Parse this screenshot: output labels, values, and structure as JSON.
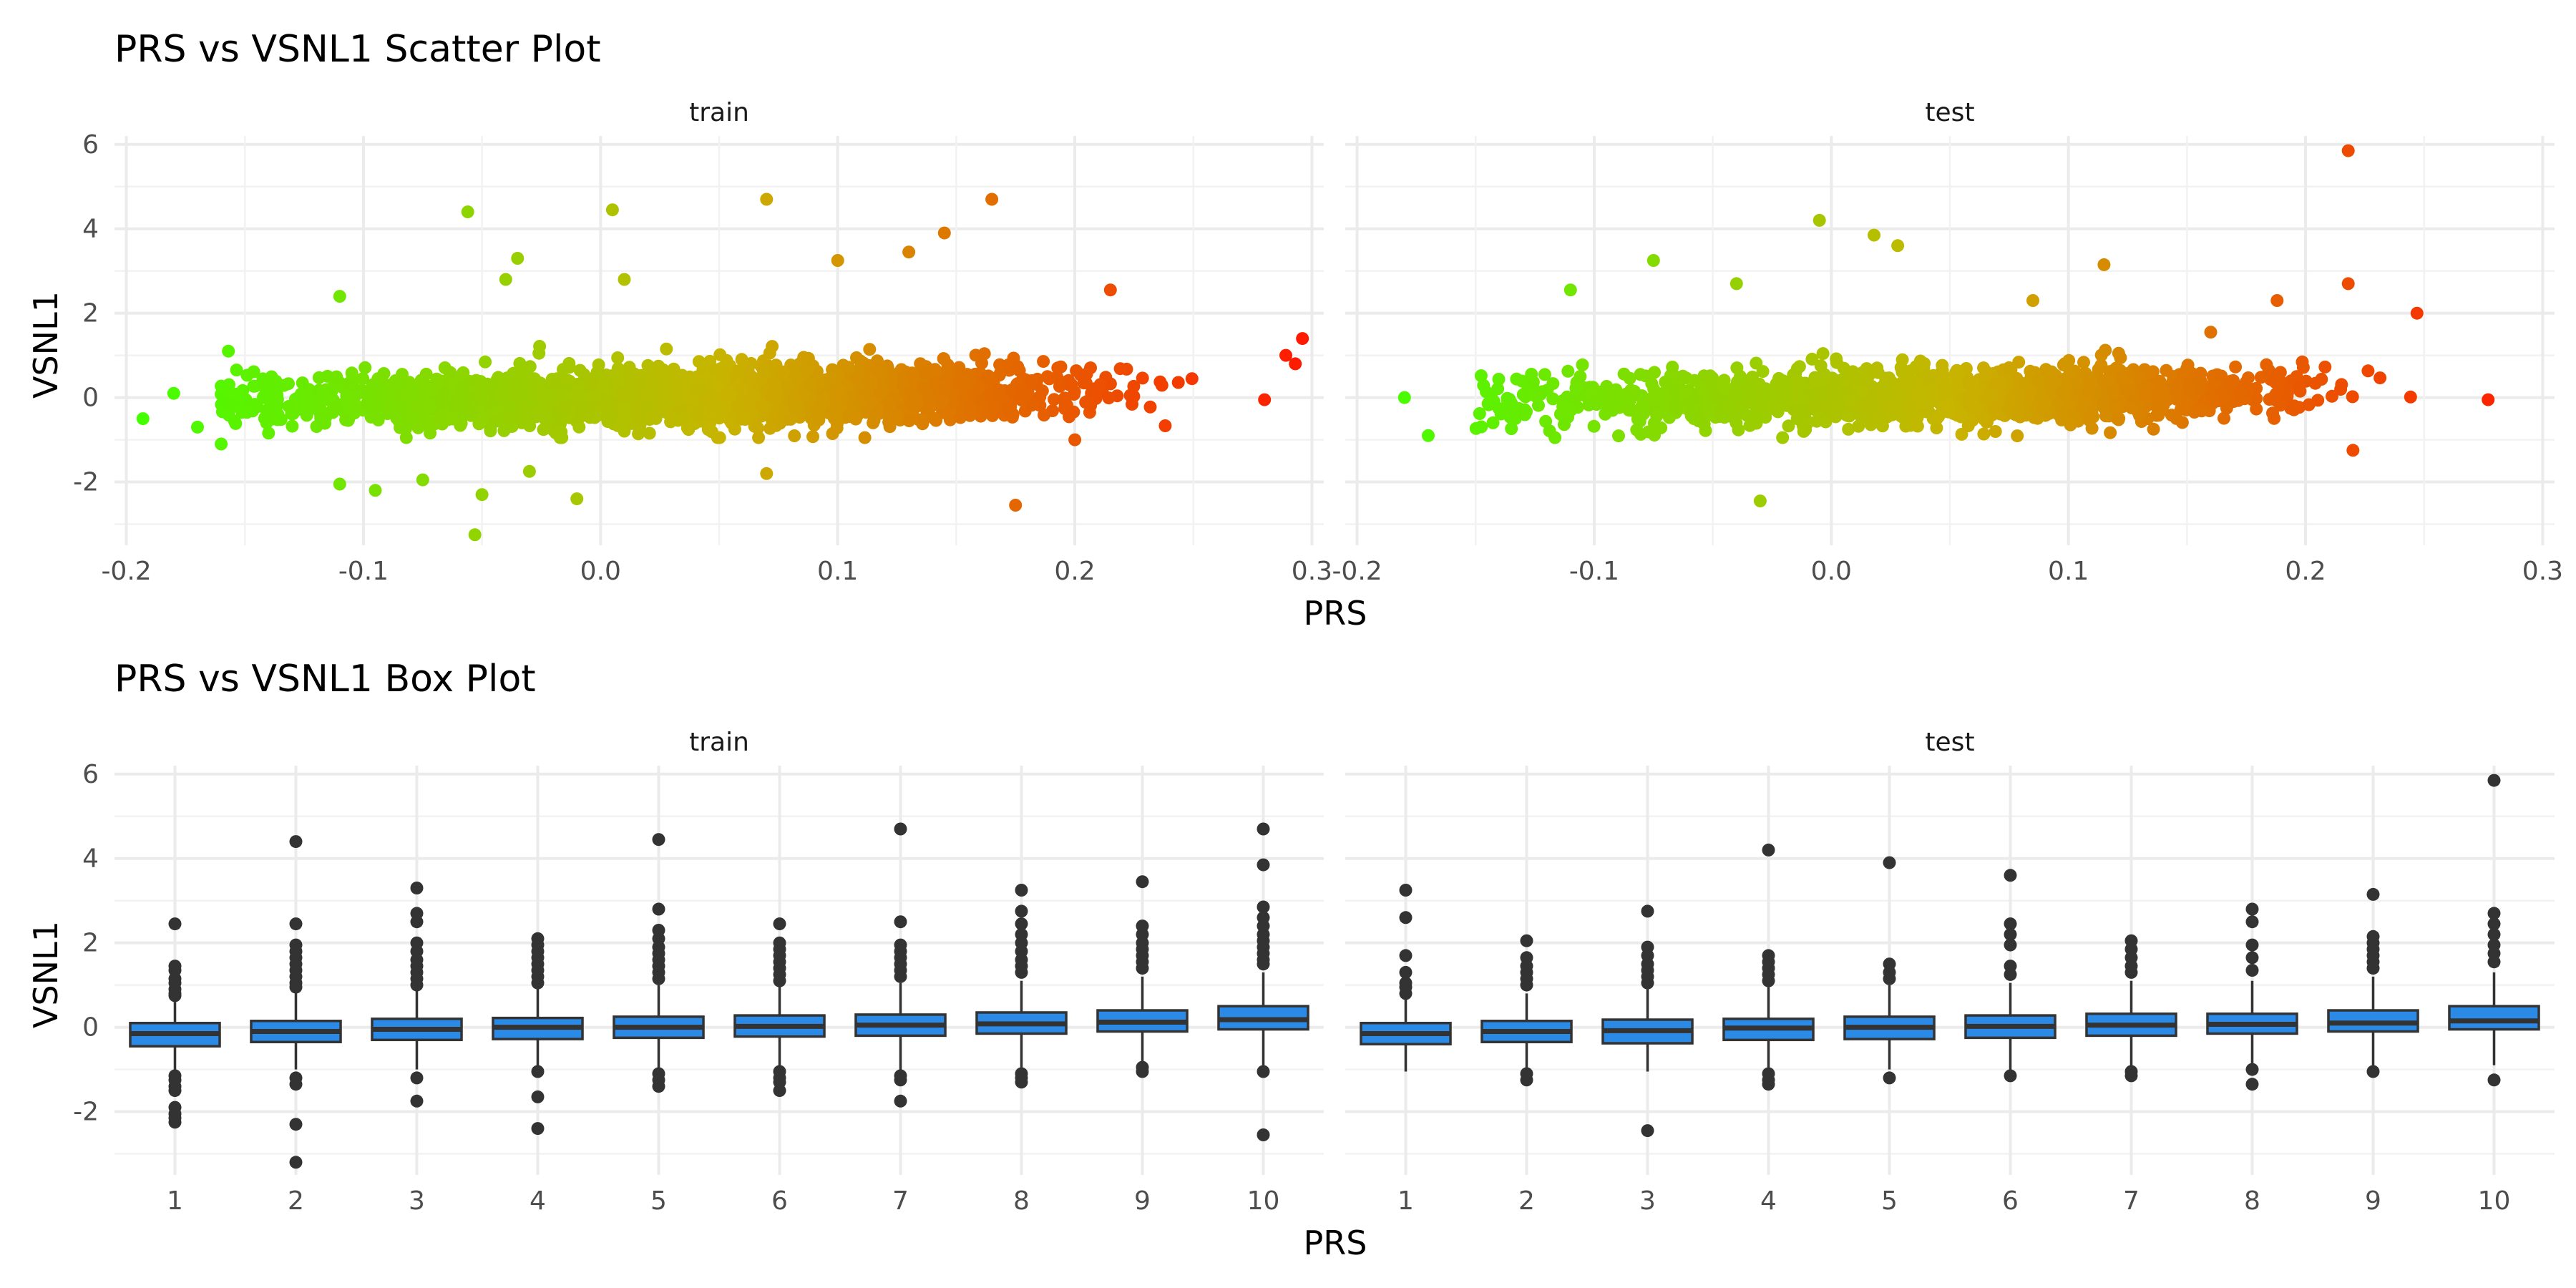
{
  "chart_data": [
    {
      "type": "scatter",
      "title": "PRS vs VSNL1 Scatter Plot",
      "xlabel": "PRS",
      "ylabel": "VSNL1",
      "xlim": [
        -0.205,
        0.305
      ],
      "ylim": [
        -3.5,
        6.2
      ],
      "x_ticks": [
        -0.2,
        -0.1,
        0.0,
        0.1,
        0.2,
        0.3
      ],
      "x_tick_labels": [
        "-0.2",
        "-0.1",
        "0.0",
        "0.1",
        "0.2",
        "0.3"
      ],
      "y_ticks": [
        -2,
        0,
        2,
        4,
        6
      ],
      "y_tick_labels": [
        "-2",
        "0",
        "2",
        "4",
        "6"
      ],
      "grid": true,
      "color_scale": {
        "low": "#44ff00",
        "mid": "#c8b400",
        "high": "#ff1a00",
        "maps": "PRS"
      },
      "panels": [
        {
          "name": "train",
          "density_ranges": {
            "x": [
              -0.16,
              0.27
            ]
          },
          "points": [
            [
              -0.193,
              -0.5
            ],
            [
              -0.18,
              0.1
            ],
            [
              -0.17,
              -0.7
            ],
            [
              -0.16,
              -1.1
            ],
            [
              -0.11,
              2.4
            ],
            [
              -0.11,
              -2.05
            ],
            [
              -0.095,
              -2.2
            ],
            [
              -0.075,
              -1.95
            ],
            [
              -0.056,
              4.4
            ],
            [
              -0.053,
              -3.25
            ],
            [
              -0.05,
              -2.3
            ],
            [
              -0.035,
              3.3
            ],
            [
              -0.04,
              2.8
            ],
            [
              -0.03,
              -1.75
            ],
            [
              -0.01,
              -2.4
            ],
            [
              0.005,
              4.45
            ],
            [
              0.01,
              2.8
            ],
            [
              0.07,
              4.7
            ],
            [
              0.07,
              -1.8
            ],
            [
              0.1,
              3.25
            ],
            [
              0.13,
              3.45
            ],
            [
              0.145,
              3.9
            ],
            [
              0.165,
              4.7
            ],
            [
              0.175,
              -2.55
            ],
            [
              0.2,
              -1.0
            ],
            [
              0.215,
              2.55
            ],
            [
              0.28,
              -0.05
            ],
            [
              0.289,
              1.0
            ],
            [
              0.293,
              0.8
            ],
            [
              0.296,
              1.4
            ]
          ]
        },
        {
          "name": "test",
          "density_ranges": {
            "x": [
              -0.15,
              0.27
            ]
          },
          "points": [
            [
              -0.18,
              0.0
            ],
            [
              -0.17,
              -0.9
            ],
            [
              -0.11,
              2.55
            ],
            [
              -0.075,
              3.25
            ],
            [
              -0.04,
              2.7
            ],
            [
              -0.03,
              -2.45
            ],
            [
              -0.005,
              4.2
            ],
            [
              0.018,
              3.85
            ],
            [
              0.028,
              3.6
            ],
            [
              0.085,
              2.3
            ],
            [
              0.115,
              3.15
            ],
            [
              0.16,
              1.55
            ],
            [
              0.188,
              2.3
            ],
            [
              0.218,
              5.85
            ],
            [
              0.218,
              2.7
            ],
            [
              0.22,
              -1.25
            ],
            [
              0.247,
              2.0
            ],
            [
              0.277,
              -0.05
            ]
          ]
        }
      ]
    },
    {
      "type": "box",
      "title": "PRS vs VSNL1 Box Plot",
      "xlabel": "PRS",
      "ylabel": "VSNL1",
      "categories": [
        "1",
        "2",
        "3",
        "4",
        "5",
        "6",
        "7",
        "8",
        "9",
        "10"
      ],
      "ylim": [
        -3.5,
        6.2
      ],
      "y_ticks": [
        -2,
        0,
        2,
        4,
        6
      ],
      "y_tick_labels": [
        "-2",
        "0",
        "2",
        "4",
        "6"
      ],
      "box_fill": "#2b8ae6",
      "grid": true,
      "series": [
        {
          "name": "train",
          "boxes": [
            {
              "q1": -0.45,
              "median": -0.15,
              "q3": 0.1,
              "whisker_low": -1.0,
              "whisker_high": 0.6,
              "outliers": [
                2.45,
                1.45,
                1.35,
                1.15,
                1.05,
                0.9,
                0.8,
                0.75,
                -1.15,
                -1.25,
                -1.4,
                -1.5,
                -1.9,
                -2.05,
                -2.15,
                -2.25
              ]
            },
            {
              "q1": -0.35,
              "median": -0.1,
              "q3": 0.15,
              "whisker_low": -1.0,
              "whisker_high": 0.8,
              "outliers": [
                4.4,
                2.45,
                1.95,
                1.8,
                1.65,
                1.5,
                1.35,
                1.2,
                1.05,
                0.95,
                -1.2,
                -1.35,
                -2.3,
                -3.2
              ]
            },
            {
              "q1": -0.3,
              "median": -0.05,
              "q3": 0.2,
              "whisker_low": -1.0,
              "whisker_high": 0.9,
              "outliers": [
                3.3,
                2.7,
                2.5,
                2.0,
                1.8,
                1.6,
                1.45,
                1.3,
                1.15,
                1.0,
                -1.2,
                -1.75
              ]
            },
            {
              "q1": -0.28,
              "median": 0.0,
              "q3": 0.22,
              "whisker_low": -1.0,
              "whisker_high": 0.95,
              "outliers": [
                2.1,
                1.95,
                1.8,
                1.65,
                1.5,
                1.35,
                1.2,
                1.05,
                -1.05,
                -1.65,
                -2.4
              ]
            },
            {
              "q1": -0.25,
              "median": 0.0,
              "q3": 0.25,
              "whisker_low": -1.0,
              "whisker_high": 1.0,
              "outliers": [
                4.45,
                2.8,
                2.3,
                2.1,
                1.9,
                1.75,
                1.6,
                1.45,
                1.3,
                1.15,
                -1.1,
                -1.25,
                -1.4
              ]
            },
            {
              "q1": -0.22,
              "median": 0.02,
              "q3": 0.28,
              "whisker_low": -1.0,
              "whisker_high": 1.0,
              "outliers": [
                2.45,
                2.0,
                1.85,
                1.7,
                1.55,
                1.4,
                1.25,
                1.1,
                -1.05,
                -1.2,
                -1.3,
                -1.5
              ]
            },
            {
              "q1": -0.2,
              "median": 0.05,
              "q3": 0.3,
              "whisker_low": -1.0,
              "whisker_high": 1.05,
              "outliers": [
                4.7,
                2.5,
                1.95,
                1.8,
                1.65,
                1.5,
                1.35,
                1.2,
                -1.15,
                -1.25,
                -1.75
              ]
            },
            {
              "q1": -0.15,
              "median": 0.08,
              "q3": 0.35,
              "whisker_low": -0.95,
              "whisker_high": 1.1,
              "outliers": [
                3.25,
                2.75,
                2.45,
                2.2,
                2.0,
                1.8,
                1.6,
                1.45,
                1.3,
                -1.1,
                -1.2,
                -1.3
              ]
            },
            {
              "q1": -0.1,
              "median": 0.12,
              "q3": 0.4,
              "whisker_low": -0.9,
              "whisker_high": 1.2,
              "outliers": [
                3.45,
                2.4,
                2.2,
                2.0,
                1.85,
                1.7,
                1.55,
                1.4,
                -0.95,
                -1.05
              ]
            },
            {
              "q1": -0.05,
              "median": 0.18,
              "q3": 0.5,
              "whisker_low": -0.9,
              "whisker_high": 1.3,
              "outliers": [
                4.7,
                3.85,
                2.85,
                2.6,
                2.4,
                2.2,
                2.05,
                1.9,
                1.75,
                1.6,
                1.5,
                -1.05,
                -2.55
              ]
            }
          ]
        },
        {
          "name": "test",
          "boxes": [
            {
              "q1": -0.4,
              "median": -0.15,
              "q3": 0.1,
              "whisker_low": -1.05,
              "whisker_high": 0.7,
              "outliers": [
                3.25,
                2.6,
                1.7,
                1.3,
                1.05,
                0.95,
                0.8
              ]
            },
            {
              "q1": -0.35,
              "median": -0.1,
              "q3": 0.15,
              "whisker_low": -1.0,
              "whisker_high": 0.8,
              "outliers": [
                2.05,
                1.65,
                1.45,
                1.3,
                1.15,
                1.0,
                -1.1,
                -1.25
              ]
            },
            {
              "q1": -0.38,
              "median": -0.08,
              "q3": 0.18,
              "whisker_low": -1.05,
              "whisker_high": 0.9,
              "outliers": [
                2.75,
                1.9,
                1.7,
                1.5,
                1.35,
                1.2,
                1.05,
                -2.45
              ]
            },
            {
              "q1": -0.3,
              "median": -0.02,
              "q3": 0.2,
              "whisker_low": -0.95,
              "whisker_high": 0.95,
              "outliers": [
                4.2,
                1.7,
                1.55,
                1.4,
                1.25,
                1.1,
                -1.1,
                -1.25,
                -1.35
              ]
            },
            {
              "q1": -0.28,
              "median": 0.0,
              "q3": 0.25,
              "whisker_low": -1.0,
              "whisker_high": 1.0,
              "outliers": [
                3.9,
                1.5,
                1.3,
                1.15,
                -1.2
              ]
            },
            {
              "q1": -0.25,
              "median": 0.02,
              "q3": 0.28,
              "whisker_low": -1.0,
              "whisker_high": 1.05,
              "outliers": [
                3.6,
                2.45,
                2.2,
                1.95,
                1.45,
                1.25,
                -1.15
              ]
            },
            {
              "q1": -0.2,
              "median": 0.05,
              "q3": 0.32,
              "whisker_low": -0.95,
              "whisker_high": 1.1,
              "outliers": [
                2.05,
                1.85,
                1.65,
                1.45,
                1.3,
                -1.05,
                -1.15
              ]
            },
            {
              "q1": -0.15,
              "median": 0.07,
              "q3": 0.32,
              "whisker_low": -0.95,
              "whisker_high": 1.1,
              "outliers": [
                2.8,
                2.5,
                1.95,
                1.65,
                1.35,
                -1.0,
                -1.35
              ]
            },
            {
              "q1": -0.1,
              "median": 0.1,
              "q3": 0.4,
              "whisker_low": -0.9,
              "whisker_high": 1.2,
              "outliers": [
                3.15,
                2.15,
                2.0,
                1.85,
                1.7,
                1.55,
                1.4,
                -1.05
              ]
            },
            {
              "q1": -0.05,
              "median": 0.15,
              "q3": 0.5,
              "whisker_low": -0.9,
              "whisker_high": 1.3,
              "outliers": [
                5.85,
                2.7,
                2.45,
                2.2,
                1.95,
                1.75,
                1.55,
                -1.25
              ]
            }
          ]
        }
      ]
    }
  ]
}
